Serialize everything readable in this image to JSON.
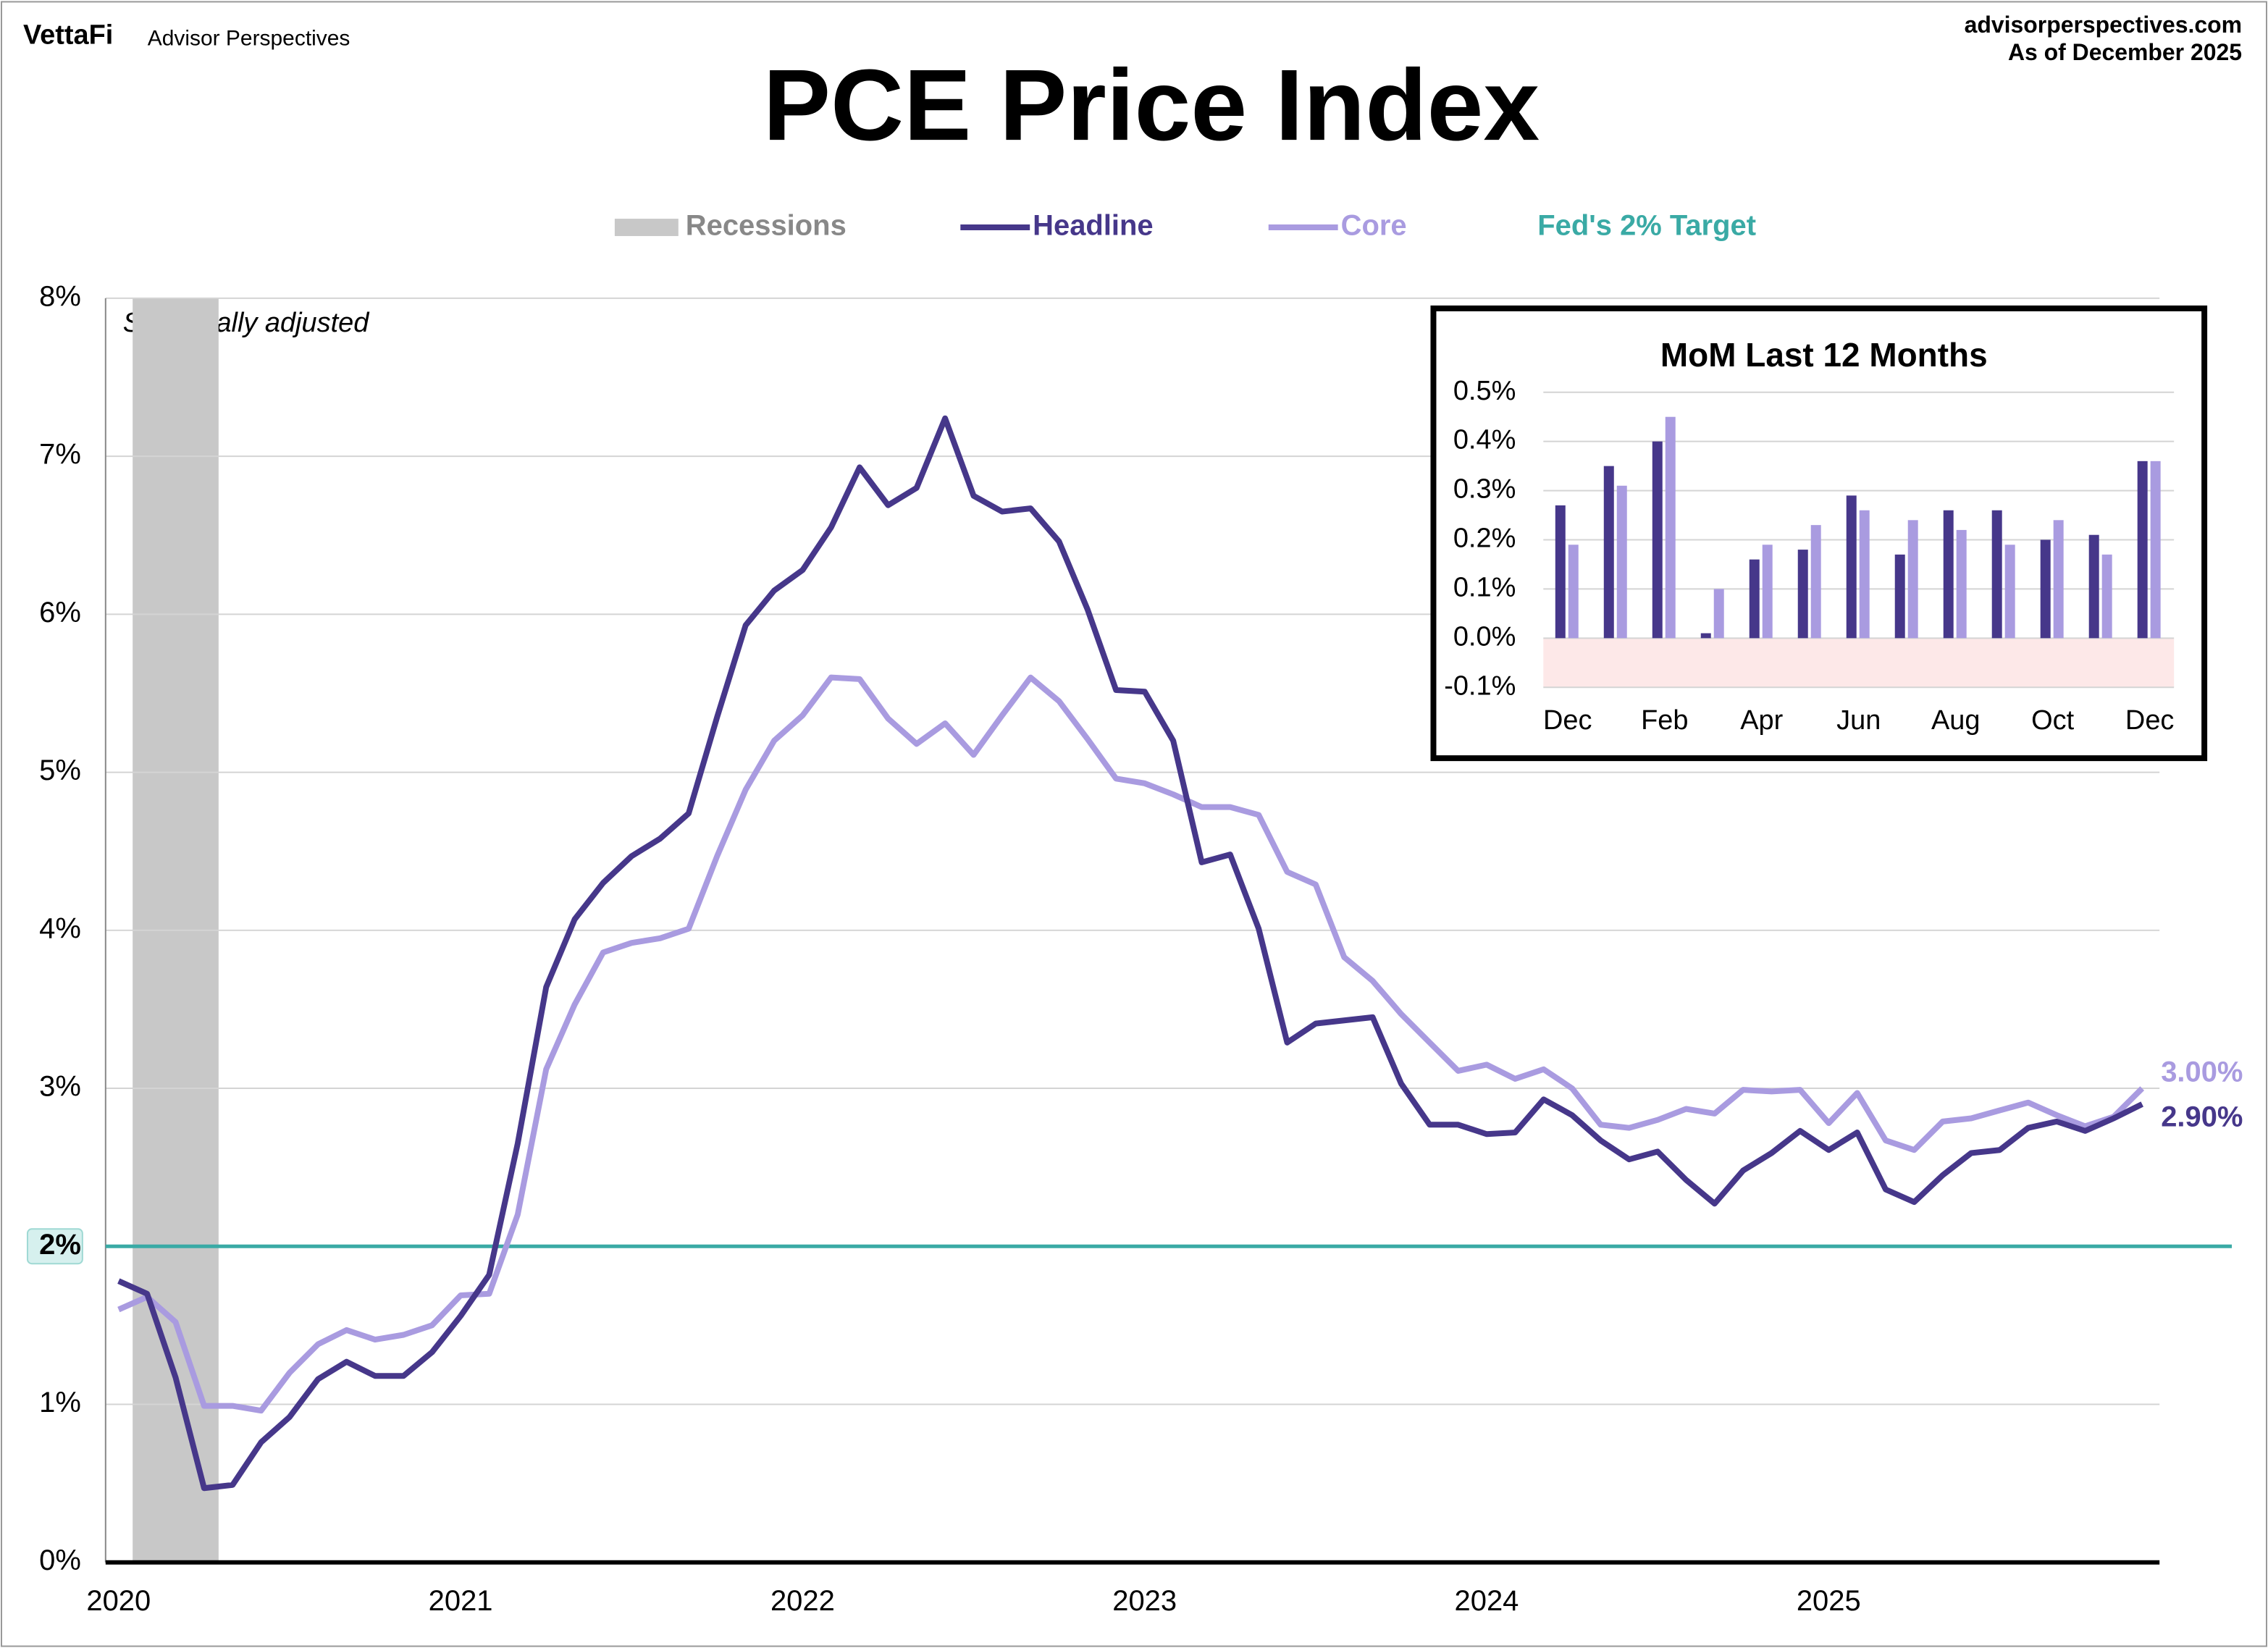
{
  "header": {
    "brand": "VettaFi",
    "sub": "Advisor Perspectives",
    "site": "advisorperspectives.com",
    "asof": "As of December 2025"
  },
  "chart_data": [
    {
      "type": "line",
      "title": "PCE Price Index",
      "annotation": "Seasonally adjusted",
      "categories": [
        "2020",
        null,
        null,
        null,
        null,
        null,
        null,
        null,
        null,
        null,
        null,
        null,
        "2021",
        null,
        null,
        null,
        null,
        null,
        null,
        null,
        null,
        null,
        null,
        null,
        "2022",
        null,
        null,
        null,
        null,
        null,
        null,
        null,
        null,
        null,
        null,
        null,
        "2023",
        null,
        null,
        null,
        null,
        null,
        null,
        null,
        null,
        null,
        null,
        null,
        "2024",
        null,
        null,
        null,
        null,
        null,
        null,
        null,
        null,
        null,
        null,
        null,
        "2025",
        null,
        null,
        null,
        null,
        null,
        null,
        null,
        null,
        null,
        null,
        null
      ],
      "recessions": {
        "name": "Recessions",
        "color": "#c8c8c8",
        "from": 1,
        "to": 3
      },
      "target": {
        "name": "Fed's 2% Target",
        "value": 2,
        "color": "#3aaaa5"
      },
      "series": [
        {
          "name": "Headline",
          "color": "#46378a",
          "values": [
            1.78,
            1.7,
            1.17,
            0.47,
            0.49,
            0.76,
            0.92,
            1.16,
            1.27,
            1.18,
            1.18,
            1.33,
            1.56,
            1.82,
            2.65,
            3.64,
            4.07,
            4.3,
            4.47,
            4.58,
            4.74,
            5.35,
            5.93,
            6.15,
            6.28,
            6.55,
            6.93,
            6.69,
            6.8,
            7.24,
            6.75,
            6.65,
            6.67,
            6.46,
            6.03,
            5.52,
            5.51,
            5.2,
            4.43,
            4.48,
            4.01,
            3.29,
            3.41,
            3.43,
            3.45,
            3.03,
            2.77,
            2.77,
            2.71,
            2.72,
            2.93,
            2.83,
            2.67,
            2.55,
            2.6,
            2.42,
            2.27,
            2.48,
            2.59,
            2.73,
            2.61,
            2.72,
            2.36,
            2.28,
            2.45,
            2.59,
            2.61,
            2.75,
            2.79,
            2.73,
            2.81,
            2.9
          ],
          "end_label": "2.90%"
        },
        {
          "name": "Core",
          "color": "#a99be0",
          "values": [
            1.6,
            1.68,
            1.52,
            0.99,
            0.99,
            0.96,
            1.2,
            1.38,
            1.47,
            1.41,
            1.44,
            1.5,
            1.69,
            1.7,
            2.2,
            3.12,
            3.53,
            3.86,
            3.92,
            3.95,
            4.01,
            4.47,
            4.89,
            5.2,
            5.36,
            5.6,
            5.59,
            5.34,
            5.18,
            5.31,
            5.11,
            5.36,
            5.6,
            5.45,
            5.21,
            4.96,
            4.93,
            4.86,
            4.78,
            4.78,
            4.73,
            4.37,
            4.29,
            3.83,
            3.68,
            3.47,
            3.29,
            3.11,
            3.15,
            3.06,
            3.12,
            3.0,
            2.77,
            2.75,
            2.8,
            2.87,
            2.84,
            2.99,
            2.98,
            2.99,
            2.78,
            2.97,
            2.67,
            2.61,
            2.79,
            2.81,
            2.86,
            2.91,
            2.83,
            2.76,
            2.82,
            3.0
          ],
          "end_label": "3.00%"
        }
      ],
      "ylim": [
        0,
        8
      ],
      "yticks": [
        {
          "value": 0,
          "label": "0%"
        },
        {
          "value": 1,
          "label": "1%"
        },
        {
          "value": 2,
          "label": "2%"
        },
        {
          "value": 3,
          "label": "3%"
        },
        {
          "value": 4,
          "label": "4%"
        },
        {
          "value": 5,
          "label": "5%"
        },
        {
          "value": 6,
          "label": "6%"
        },
        {
          "value": 7,
          "label": "7%"
        },
        {
          "value": 8,
          "label": "8%"
        }
      ],
      "grid": true
    },
    {
      "type": "bar",
      "title": "MoM Last 12 Months",
      "categories": [
        "Dec",
        null,
        "Feb",
        null,
        "Apr",
        null,
        "Jun",
        null,
        "Aug",
        null,
        "Oct",
        null,
        "Dec"
      ],
      "series": [
        {
          "name": "Headline",
          "color": "#46378a",
          "values": [
            0.27,
            0.35,
            0.4,
            0.01,
            0.16,
            0.18,
            0.29,
            0.17,
            0.26,
            0.26,
            0.2,
            0.21,
            0.36
          ]
        },
        {
          "name": "Core",
          "color": "#a99be0",
          "values": [
            0.19,
            0.31,
            0.45,
            0.1,
            0.19,
            0.23,
            0.26,
            0.24,
            0.22,
            0.19,
            0.24,
            0.17,
            0.36
          ]
        }
      ],
      "ylim": [
        -0.1,
        0.5
      ],
      "yticks": [
        {
          "value": -0.1,
          "label": "-0.1%"
        },
        {
          "value": 0,
          "label": "0.0%"
        },
        {
          "value": 0.1,
          "label": "0.1%"
        },
        {
          "value": 0.2,
          "label": "0.2%"
        },
        {
          "value": 0.3,
          "label": "0.3%"
        },
        {
          "value": 0.4,
          "label": "0.4%"
        },
        {
          "value": 0.5,
          "label": "0.5%"
        }
      ],
      "grid": true,
      "negative_fill": "#fde8e8"
    }
  ]
}
